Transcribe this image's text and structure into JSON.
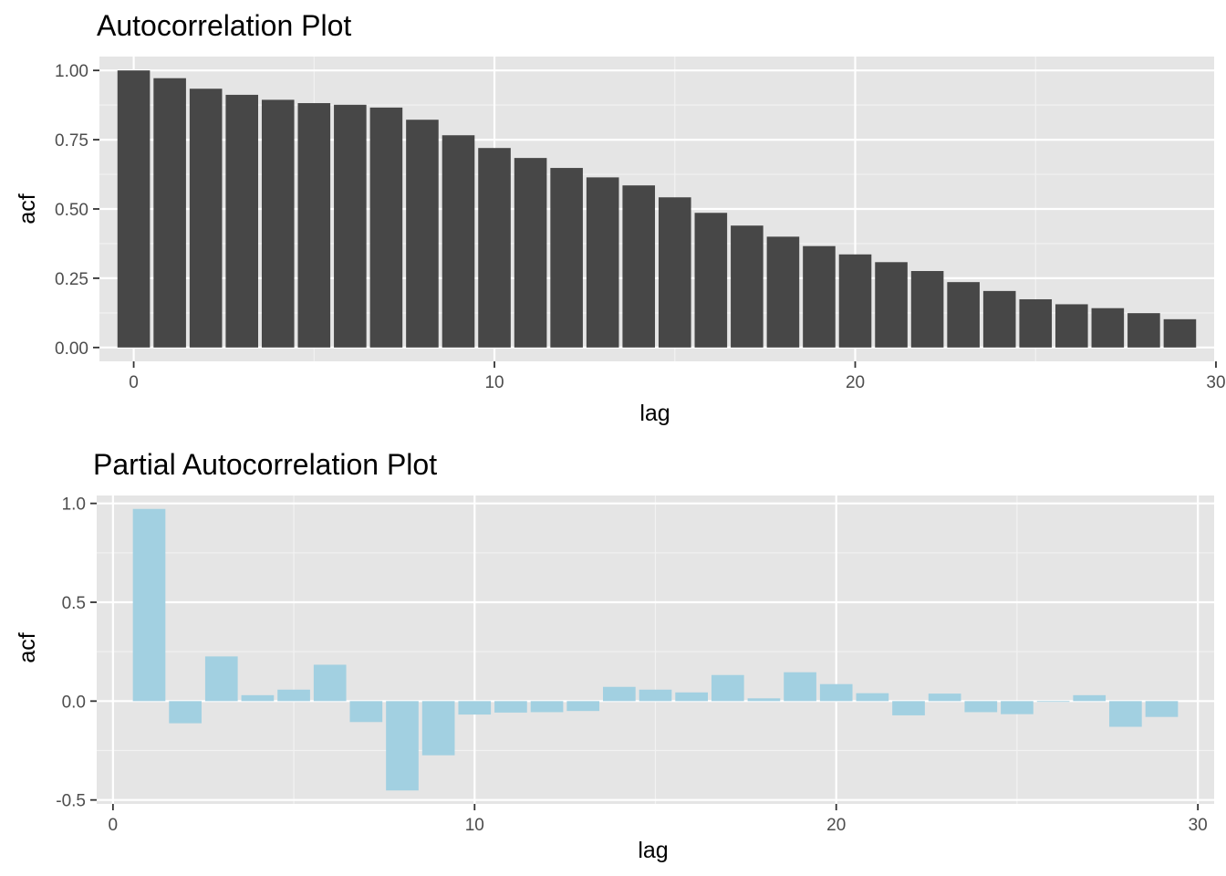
{
  "chart_data": [
    {
      "type": "bar",
      "title": "Autocorrelation Plot",
      "xlabel": "lag",
      "ylabel": "acf",
      "xlim": [
        -0.95,
        29.95
      ],
      "ylim": [
        -0.05,
        1.05
      ],
      "x_ticks": [
        0,
        10,
        20,
        30
      ],
      "y_ticks": [
        "0.00",
        "0.25",
        "0.50",
        "0.75",
        "1.00"
      ],
      "bar_color": "#474747",
      "grid": true,
      "x": [
        0,
        1,
        2,
        3,
        4,
        5,
        6,
        7,
        8,
        9,
        10,
        11,
        12,
        13,
        14,
        15,
        16,
        17,
        18,
        19,
        20,
        21,
        22,
        23,
        24,
        25,
        26,
        27,
        28,
        29
      ],
      "values": [
        1.0,
        0.972,
        0.934,
        0.912,
        0.894,
        0.882,
        0.876,
        0.866,
        0.822,
        0.766,
        0.72,
        0.684,
        0.648,
        0.614,
        0.585,
        0.542,
        0.486,
        0.44,
        0.4,
        0.366,
        0.336,
        0.308,
        0.276,
        0.236,
        0.204,
        0.174,
        0.156,
        0.142,
        0.124,
        0.102
      ]
    },
    {
      "type": "bar",
      "title": "Partial Autocorrelation Plot",
      "xlabel": "lag",
      "ylabel": "acf",
      "xlim": [
        -0.45,
        30.45
      ],
      "ylim": [
        -0.52,
        1.04
      ],
      "x_ticks": [
        0,
        10,
        20,
        30
      ],
      "y_ticks": [
        "-0.5",
        "0.0",
        "0.5",
        "1.0"
      ],
      "bar_color": "#a2d0e1",
      "grid": true,
      "x": [
        1,
        2,
        3,
        4,
        5,
        6,
        7,
        8,
        9,
        10,
        11,
        12,
        13,
        14,
        15,
        16,
        17,
        18,
        19,
        20,
        21,
        22,
        23,
        24,
        25,
        26,
        27,
        28,
        29
      ],
      "values": [
        0.972,
        -0.112,
        0.226,
        0.03,
        0.058,
        0.184,
        -0.106,
        -0.452,
        -0.274,
        -0.068,
        -0.058,
        -0.056,
        -0.05,
        0.072,
        0.058,
        0.044,
        0.132,
        0.014,
        0.146,
        0.086,
        0.04,
        -0.072,
        0.038,
        -0.056,
        -0.066,
        -0.004,
        0.03,
        -0.13,
        -0.08
      ]
    }
  ]
}
